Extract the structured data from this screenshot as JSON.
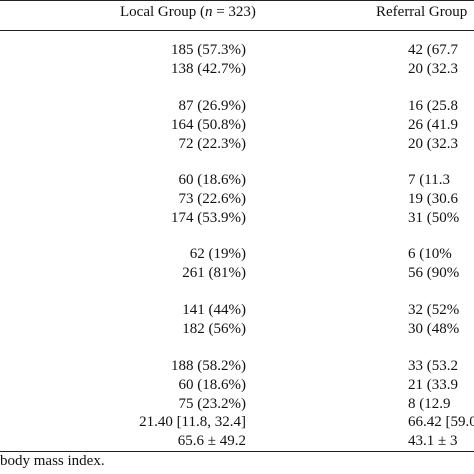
{
  "header": {
    "local_prefix": "Local Group (",
    "local_n": "n",
    "local_suffix": " = 323)",
    "referral": "Referral Group"
  },
  "rows": [
    {
      "local": "185 (57.3%)",
      "referral": "42 (67.7"
    },
    {
      "local": "138 (42.7%)",
      "referral": "20 (32.3"
    },
    {
      "local": "87 (26.9%)",
      "referral": "16 (25.8"
    },
    {
      "local": "164 (50.8%)",
      "referral": "26 (41.9"
    },
    {
      "local": "72 (22.3%)",
      "referral": "20 (32.3"
    },
    {
      "local": "60 (18.6%)",
      "referral": "7 (11.3"
    },
    {
      "local": "73 (22.6%)",
      "referral": "19 (30.6"
    },
    {
      "local": "174 (53.9%)",
      "referral": "31 (50%"
    },
    {
      "local": "62 (19%)",
      "referral": "6 (10%"
    },
    {
      "local": "261 (81%)",
      "referral": "56 (90%"
    },
    {
      "local": "141 (44%)",
      "referral": "32 (52%"
    },
    {
      "local": "182 (56%)",
      "referral": "30 (48%"
    },
    {
      "local": "188 (58.2%)",
      "referral": "33 (53.2"
    },
    {
      "local": "60 (18.6%)",
      "referral": "21 (33.9"
    },
    {
      "local": "75 (23.2%)",
      "referral": "8 (12.9"
    },
    {
      "local": "21.40 [11.8, 32.4]",
      "referral": "66.42 [59.0,"
    },
    {
      "local": "65.6 ± 49.2",
      "referral": "43.1 ± 3"
    }
  ],
  "footnote": "body mass index."
}
